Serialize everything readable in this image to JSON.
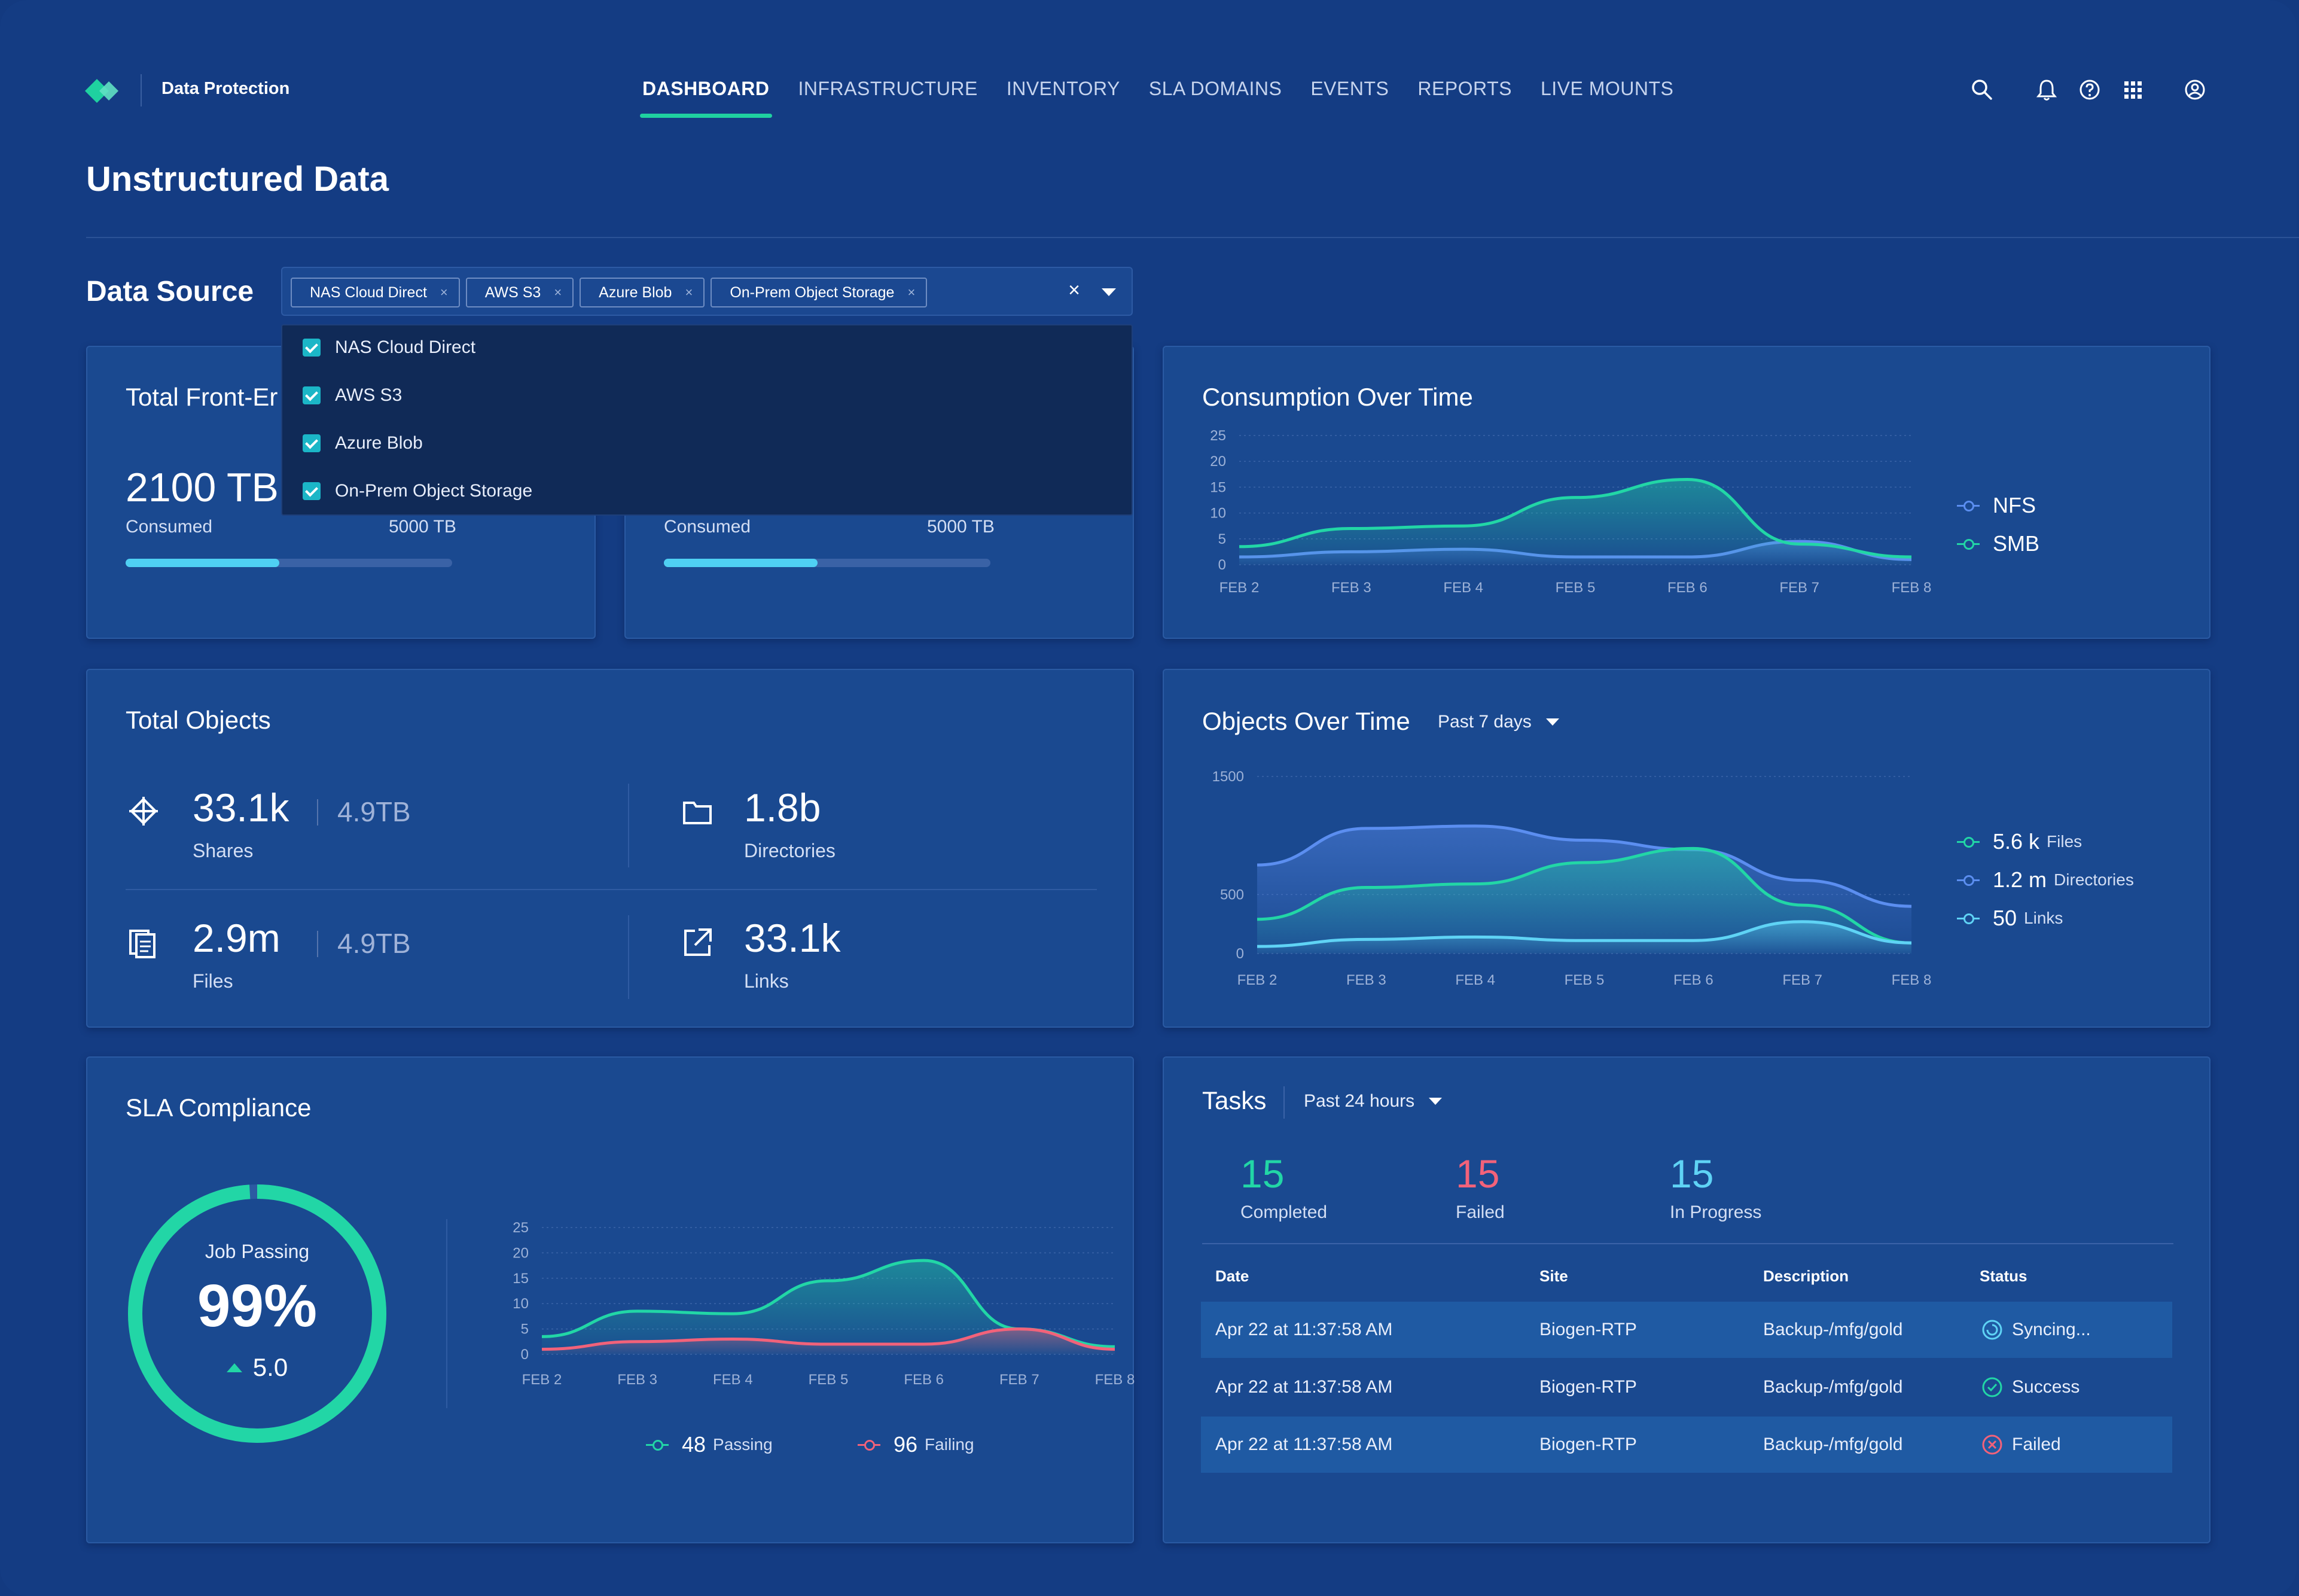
{
  "header": {
    "app_title": "Data Protection",
    "nav": [
      {
        "label": "DASHBOARD",
        "active": true
      },
      {
        "label": "INFRASTRUCTURE"
      },
      {
        "label": "INVENTORY"
      },
      {
        "label": "SLA DOMAINS"
      },
      {
        "label": "EVENTS"
      },
      {
        "label": "REPORTS"
      },
      {
        "label": "LIVE MOUNTS"
      }
    ],
    "icons": [
      "search-icon",
      "bell-icon",
      "help-icon",
      "apps-grid-icon",
      "user-icon"
    ]
  },
  "page_title": "Unstructured Data",
  "data_source": {
    "label": "Data Source",
    "chips": [
      "NAS Cloud Direct",
      "AWS S3",
      "Azure Blob",
      "On-Prem Object Storage"
    ],
    "chip_remove": "×",
    "clear": "×",
    "options": [
      {
        "label": "NAS Cloud Direct",
        "checked": true
      },
      {
        "label": "AWS S3",
        "checked": true
      },
      {
        "label": "Azure Blob",
        "checked": true
      },
      {
        "label": "On-Prem Object Storage",
        "checked": true
      }
    ]
  },
  "front_end": {
    "title": "Total Front-Er",
    "value": "2100 TB",
    "consumed_label": "Consumed",
    "capacity": "5000 TB",
    "progress": 0.47
  },
  "second_usage": {
    "consumed_label": "Consumed",
    "capacity": "5000 TB",
    "progress": 0.47
  },
  "consumption": {
    "title": "Consumption Over Time",
    "legend": [
      {
        "name": "NFS",
        "color": "#5b8ef0"
      },
      {
        "name": "SMB",
        "color": "#22d6a6"
      }
    ],
    "chart_data": {
      "type": "area",
      "x": [
        "FEB 2",
        "FEB 3",
        "FEB 4",
        "FEB 5",
        "FEB 6",
        "FEB 7",
        "FEB 8"
      ],
      "y_ticks": [
        "25",
        "20",
        "15",
        "10",
        "5",
        "0"
      ],
      "ylim": [
        0,
        25
      ],
      "series": [
        {
          "name": "NFS",
          "values": [
            1.5,
            2.5,
            3,
            1.5,
            1.5,
            4.5,
            1
          ]
        },
        {
          "name": "SMB",
          "values": [
            3.5,
            7,
            7.5,
            13,
            16.5,
            4,
            1.5
          ]
        }
      ]
    }
  },
  "objects": {
    "title": "Total Objects",
    "shares": {
      "value": "33.1k",
      "size": "4.9TB",
      "label": "Shares"
    },
    "directories": {
      "value": "1.8b",
      "label": "Directories"
    },
    "files": {
      "value": "2.9m",
      "size": "4.9TB",
      "label": "Files"
    },
    "links": {
      "value": "33.1k",
      "label": "Links"
    }
  },
  "objects_time": {
    "title": "Objects Over Time",
    "range": "Past 7 days",
    "legend": [
      {
        "value": "5.6 k",
        "name": "Files",
        "color": "#22d6a6"
      },
      {
        "value": "1.2 m",
        "name": "Directories",
        "color": "#5b8ef0"
      },
      {
        "value": "50",
        "name": "Links",
        "color": "#5fd3f5"
      }
    ],
    "chart_data": {
      "type": "area",
      "x": [
        "FEB 2",
        "FEB 3",
        "FEB 4",
        "FEB 5",
        "FEB 6",
        "FEB 7",
        "FEB 8"
      ],
      "y_ticks": [
        "1500",
        "500",
        "0"
      ],
      "series": [
        {
          "name": "Directories",
          "values": [
            750,
            1060,
            1080,
            960,
            880,
            620,
            400
          ]
        },
        {
          "name": "Files",
          "values": [
            290,
            560,
            590,
            770,
            890,
            410,
            90
          ]
        },
        {
          "name": "Links",
          "values": [
            60,
            120,
            140,
            110,
            110,
            270,
            90
          ]
        }
      ]
    }
  },
  "sla": {
    "title": "SLA Compliance",
    "gauge_label": "Job Passing",
    "gauge_value": "99%",
    "gauge_fraction": 0.99,
    "delta": "5.0",
    "legend": [
      {
        "value": "48",
        "name": "Passing",
        "color": "#22d6a6"
      },
      {
        "value": "96",
        "name": "Failing",
        "color": "#f2627a"
      }
    ],
    "chart_data": {
      "type": "area",
      "x": [
        "FEB 2",
        "FEB 3",
        "FEB 4",
        "FEB 5",
        "FEB 6",
        "FEB 7",
        "FEB 8"
      ],
      "y_ticks": [
        "25",
        "20",
        "15",
        "10",
        "5",
        "0"
      ],
      "ylim": [
        0,
        25
      ],
      "series": [
        {
          "name": "Passing",
          "values": [
            3.5,
            8.5,
            8,
            14.5,
            18.5,
            5,
            1.5
          ]
        },
        {
          "name": "Failing",
          "values": [
            1,
            2.5,
            3,
            2,
            2,
            5,
            1
          ]
        }
      ]
    }
  },
  "tasks": {
    "title": "Tasks",
    "range": "Past 24 hours",
    "completed": {
      "value": "15",
      "label": "Completed",
      "color": "#22d6a6"
    },
    "failed": {
      "value": "15",
      "label": "Failed",
      "color": "#f2627a"
    },
    "in_progress": {
      "value": "15",
      "label": "In Progress",
      "color": "#5fd3f5"
    },
    "columns": [
      "Date",
      "Site",
      "Description",
      "Status"
    ],
    "rows": [
      {
        "date": "Apr 22 at 11:37:58 AM",
        "site": "Biogen-RTP",
        "description": "Backup-/mfg/gold",
        "status": "Syncing...",
        "status_icon": "syncing-icon"
      },
      {
        "date": "Apr 22 at 11:37:58 AM",
        "site": "Biogen-RTP",
        "description": "Backup-/mfg/gold",
        "status": "Success",
        "status_icon": "success-icon"
      },
      {
        "date": "Apr 22 at 11:37:58 AM",
        "site": "Biogen-RTP",
        "description": "Backup-/mfg/gold",
        "status": "Failed",
        "status_icon": "failed-icon"
      }
    ]
  }
}
